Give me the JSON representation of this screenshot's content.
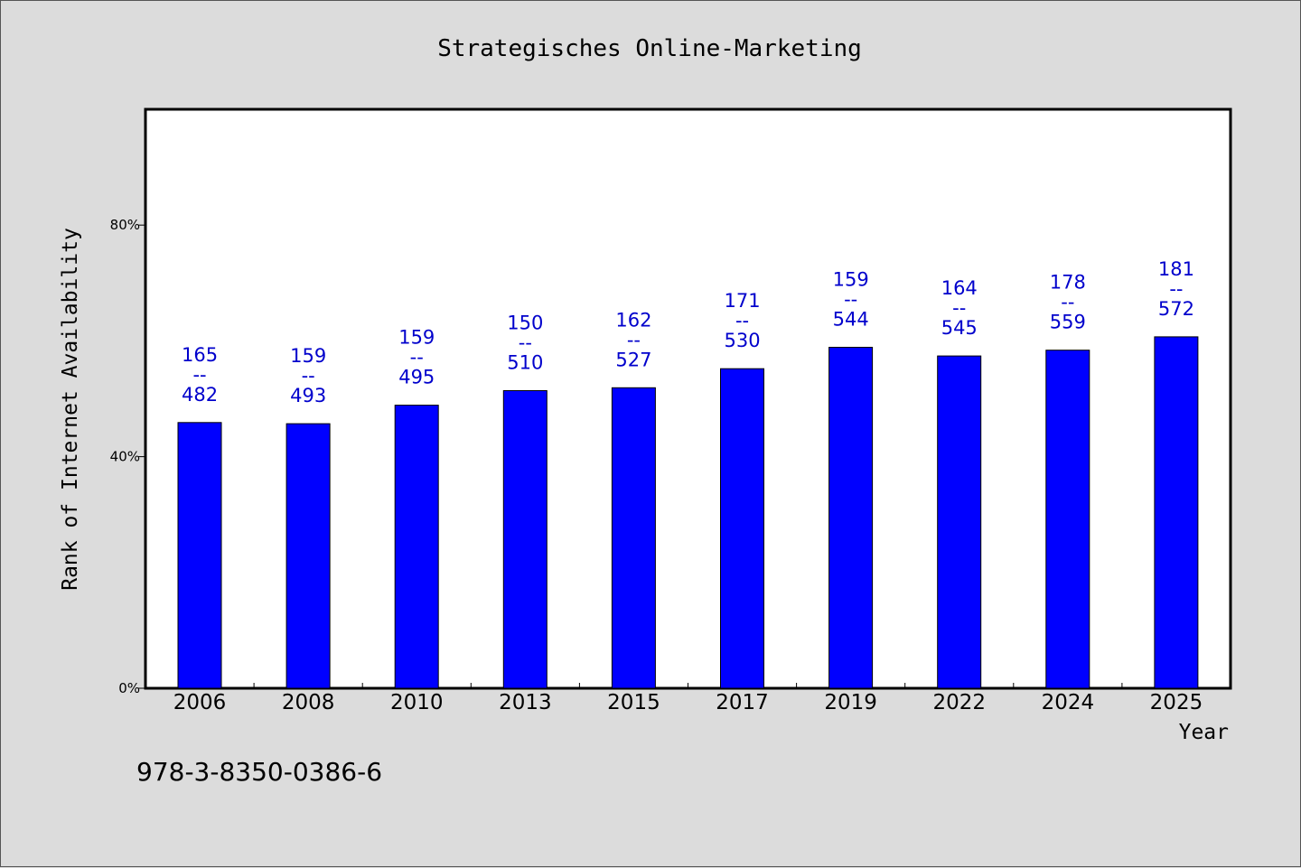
{
  "chart_data": {
    "type": "bar",
    "title": "Strategisches Online-Marketing",
    "xlabel": "Year",
    "ylabel": "Rank of Internet Availability",
    "categories": [
      "2006",
      "2008",
      "2010",
      "2013",
      "2015",
      "2017",
      "2019",
      "2022",
      "2024",
      "2025"
    ],
    "values": [
      45.9,
      45.7,
      48.9,
      51.4,
      51.9,
      55.2,
      58.9,
      57.4,
      58.4,
      60.7
    ],
    "labels_top": [
      "165",
      "159",
      "159",
      "150",
      "162",
      "171",
      "159",
      "164",
      "178",
      "181"
    ],
    "labels_bottom": [
      "482",
      "493",
      "495",
      "510",
      "527",
      "530",
      "544",
      "545",
      "559",
      "572"
    ],
    "label_separator": "--",
    "ylim": [
      0,
      100
    ],
    "yticks": [
      0,
      40,
      80
    ],
    "ytick_labels": [
      "0%",
      "40%",
      "80%"
    ],
    "bar_color": "#0000ff",
    "label_color": "#0000cc",
    "grid": false,
    "legend": "none"
  },
  "footer": {
    "isbn": "978-3-8350-0386-6"
  }
}
